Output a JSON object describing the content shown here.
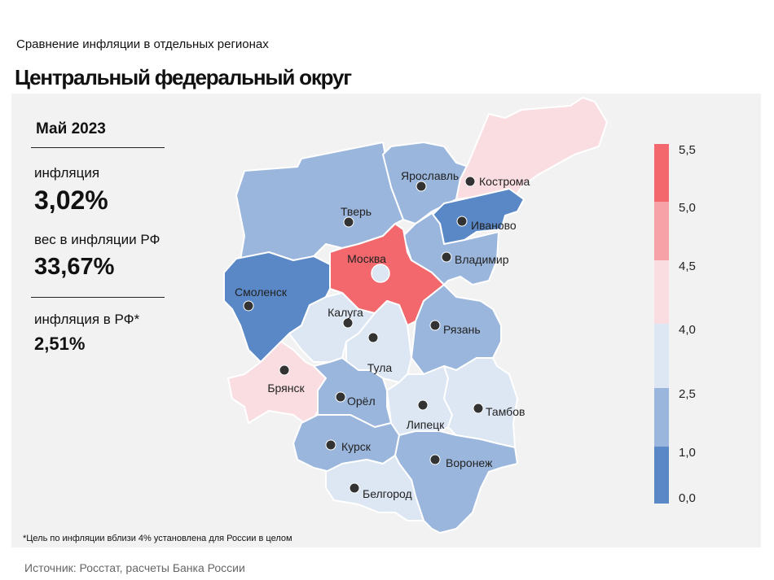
{
  "header": {
    "subtitle": "Сравнение  инфляции  в отдельных  регионах",
    "title": "Центральный федеральный округ"
  },
  "stats": {
    "period": "Май 2023",
    "inflation_label": "инфляция",
    "inflation_value": "3,02%",
    "weight_label": "вес в инфляции  РФ",
    "weight_value": "33,67%",
    "rf_label": "инфляция  в РФ*",
    "rf_value": "2,51%"
  },
  "legend": {
    "bins": [
      {
        "from": "0,0",
        "to": "1,0",
        "color": "#5a87c5"
      },
      {
        "from": "1,0",
        "to": "2,5",
        "color": "#9bb6dc"
      },
      {
        "from": "2,5",
        "to": "4,0",
        "color": "#dde6f3"
      },
      {
        "from": "4,0",
        "to": "4,5",
        "color": "#f9dde1"
      },
      {
        "from": "4,5",
        "to": "5,0",
        "color": "#f6a2a6"
      },
      {
        "from": "5,0",
        "to": "5,5",
        "color": "#f3686d"
      }
    ],
    "ticks": [
      "0,0",
      "1,0",
      "2,5",
      "4,0",
      "4,5",
      "5,0",
      "5,5"
    ]
  },
  "regions": [
    {
      "name": "Тверь",
      "bin": 1
    },
    {
      "name": "Ярославль",
      "bin": 1
    },
    {
      "name": "Кострома",
      "bin": 3
    },
    {
      "name": "Иваново",
      "bin": 0
    },
    {
      "name": "Владимир",
      "bin": 1
    },
    {
      "name": "Москва",
      "bin": 5
    },
    {
      "name": "Смоленск",
      "bin": 0
    },
    {
      "name": "Калуга",
      "bin": 2
    },
    {
      "name": "Тула",
      "bin": 2
    },
    {
      "name": "Рязань",
      "bin": 1
    },
    {
      "name": "Брянск",
      "bin": 3
    },
    {
      "name": "Орёл",
      "bin": 1
    },
    {
      "name": "Липецк",
      "bin": 2
    },
    {
      "name": "Тамбов",
      "bin": 2
    },
    {
      "name": "Курск",
      "bin": 1
    },
    {
      "name": "Воронеж",
      "bin": 1
    },
    {
      "name": "Белгород",
      "bin": 2
    }
  ],
  "footnote": "*Цель по инфляции вблизи 4% установлена для России в целом",
  "source": "Источник: Росстат, расчеты Банка России"
}
